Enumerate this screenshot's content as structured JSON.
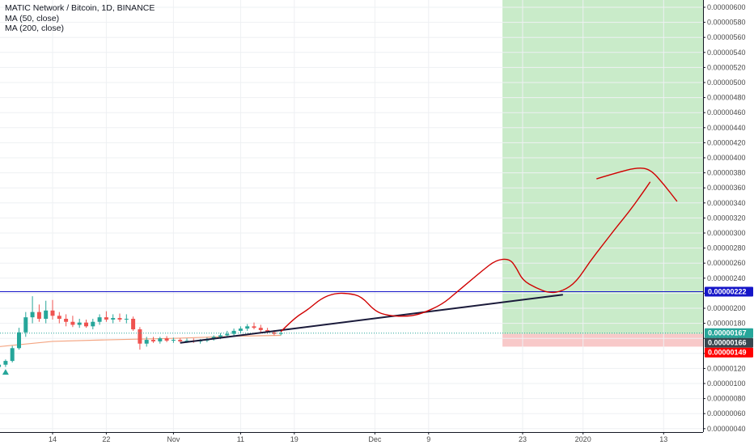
{
  "header": {
    "title": "MATIC Network / Bitcoin, 1D, BINANCE",
    "indicators": [
      "MA (50, close)",
      "MA (200, close)"
    ]
  },
  "colors": {
    "up": "#26a69a",
    "down": "#ef5350",
    "ma200": "#f4a582",
    "hline": "#1515c8",
    "trendline": "#1a1a3a",
    "drawing": "#d00000",
    "profit_zone": "#c9ebc9",
    "loss_zone": "#f8c9c9",
    "tag_hline": "#1515c8",
    "tag_current": "#26a69a",
    "tag_entry": "#37474f",
    "tag_stop": "#ff0000"
  },
  "chart_data": {
    "type": "candlestick",
    "title": "MATIC Network / Bitcoin, 1D, BINANCE",
    "y_axis": {
      "min": 4e-07,
      "max": 6.1e-07,
      "step": 2e-07,
      "ticks": [
        "0.00000600",
        "0.00000580",
        "0.00000560",
        "0.00000540",
        "0.00000520",
        "0.00000500",
        "0.00000480",
        "0.00000460",
        "0.00000440",
        "0.00000420",
        "0.00000400",
        "0.00000380",
        "0.00000360",
        "0.00000340",
        "0.00000320",
        "0.00000300",
        "0.00000280",
        "0.00000260",
        "0.00000240",
        "0.00000220",
        "0.00000200",
        "0.00000180",
        "0.00000160",
        "0.00000140",
        "0.00000120",
        "0.00000100",
        "0.00000080",
        "0.00000060",
        "0.00000040"
      ]
    },
    "x_axis": {
      "ticks": [
        {
          "label": "14",
          "date": "2019-10-14"
        },
        {
          "label": "22",
          "date": "2019-10-22"
        },
        {
          "label": "Nov",
          "date": "2019-11-01"
        },
        {
          "label": "11",
          "date": "2019-11-11"
        },
        {
          "label": "19",
          "date": "2019-11-19"
        },
        {
          "label": "Dec",
          "date": "2019-12-01"
        },
        {
          "label": "9",
          "date": "2019-12-09"
        },
        {
          "label": "23",
          "date": "2019-12-23"
        },
        {
          "label": "2020",
          "date": "2020-01-01"
        },
        {
          "label": "13",
          "date": "2020-01-13"
        }
      ]
    },
    "candles": [
      {
        "date": "2019-10-06",
        "o": 1.22,
        "h": 1.28,
        "l": 1.18,
        "c": 1.25
      },
      {
        "date": "2019-10-07",
        "o": 1.25,
        "h": 1.32,
        "l": 1.22,
        "c": 1.3
      },
      {
        "date": "2019-10-08",
        "o": 1.3,
        "h": 1.5,
        "l": 1.28,
        "c": 1.47
      },
      {
        "date": "2019-10-09",
        "o": 1.47,
        "h": 1.74,
        "l": 1.45,
        "c": 1.68
      },
      {
        "date": "2019-10-10",
        "o": 1.68,
        "h": 1.95,
        "l": 1.62,
        "c": 1.88
      },
      {
        "date": "2019-10-11",
        "o": 1.88,
        "h": 2.16,
        "l": 1.8,
        "c": 1.95
      },
      {
        "date": "2019-10-12",
        "o": 1.95,
        "h": 2.05,
        "l": 1.82,
        "c": 1.86
      },
      {
        "date": "2019-10-13",
        "o": 1.86,
        "h": 2.1,
        "l": 1.8,
        "c": 1.97
      },
      {
        "date": "2019-10-14",
        "o": 1.97,
        "h": 2.11,
        "l": 1.85,
        "c": 1.9
      },
      {
        "date": "2019-10-15",
        "o": 1.9,
        "h": 1.95,
        "l": 1.8,
        "c": 1.86
      },
      {
        "date": "2019-10-16",
        "o": 1.86,
        "h": 1.92,
        "l": 1.76,
        "c": 1.82
      },
      {
        "date": "2019-10-17",
        "o": 1.82,
        "h": 1.9,
        "l": 1.75,
        "c": 1.78
      },
      {
        "date": "2019-10-18",
        "o": 1.78,
        "h": 1.86,
        "l": 1.74,
        "c": 1.81
      },
      {
        "date": "2019-10-19",
        "o": 1.81,
        "h": 1.85,
        "l": 1.74,
        "c": 1.76
      },
      {
        "date": "2019-10-20",
        "o": 1.76,
        "h": 1.86,
        "l": 1.72,
        "c": 1.82
      },
      {
        "date": "2019-10-21",
        "o": 1.82,
        "h": 1.92,
        "l": 1.78,
        "c": 1.88
      },
      {
        "date": "2019-10-22",
        "o": 1.88,
        "h": 1.96,
        "l": 1.82,
        "c": 1.85
      },
      {
        "date": "2019-10-23",
        "o": 1.85,
        "h": 1.92,
        "l": 1.8,
        "c": 1.87
      },
      {
        "date": "2019-10-24",
        "o": 1.87,
        "h": 1.93,
        "l": 1.82,
        "c": 1.85
      },
      {
        "date": "2019-10-25",
        "o": 1.85,
        "h": 1.92,
        "l": 1.8,
        "c": 1.86
      },
      {
        "date": "2019-10-26",
        "o": 1.86,
        "h": 1.89,
        "l": 1.7,
        "c": 1.72
      },
      {
        "date": "2019-10-27",
        "o": 1.72,
        "h": 1.75,
        "l": 1.45,
        "c": 1.53
      },
      {
        "date": "2019-10-28",
        "o": 1.53,
        "h": 1.62,
        "l": 1.49,
        "c": 1.58
      },
      {
        "date": "2019-10-29",
        "o": 1.58,
        "h": 1.62,
        "l": 1.54,
        "c": 1.56
      },
      {
        "date": "2019-10-30",
        "o": 1.56,
        "h": 1.62,
        "l": 1.53,
        "c": 1.6
      },
      {
        "date": "2019-10-31",
        "o": 1.6,
        "h": 1.63,
        "l": 1.55,
        "c": 1.57
      },
      {
        "date": "2019-11-01",
        "o": 1.57,
        "h": 1.61,
        "l": 1.54,
        "c": 1.58
      },
      {
        "date": "2019-11-02",
        "o": 1.58,
        "h": 1.6,
        "l": 1.55,
        "c": 1.56
      },
      {
        "date": "2019-11-03",
        "o": 1.56,
        "h": 1.6,
        "l": 1.54,
        "c": 1.57
      },
      {
        "date": "2019-11-04",
        "o": 1.57,
        "h": 1.6,
        "l": 1.54,
        "c": 1.56
      },
      {
        "date": "2019-11-05",
        "o": 1.56,
        "h": 1.59,
        "l": 1.53,
        "c": 1.57
      },
      {
        "date": "2019-11-06",
        "o": 1.57,
        "h": 1.61,
        "l": 1.55,
        "c": 1.59
      },
      {
        "date": "2019-11-07",
        "o": 1.59,
        "h": 1.64,
        "l": 1.57,
        "c": 1.62
      },
      {
        "date": "2019-11-08",
        "o": 1.62,
        "h": 1.67,
        "l": 1.59,
        "c": 1.64
      },
      {
        "date": "2019-11-09",
        "o": 1.64,
        "h": 1.7,
        "l": 1.61,
        "c": 1.66
      },
      {
        "date": "2019-11-10",
        "o": 1.66,
        "h": 1.73,
        "l": 1.63,
        "c": 1.7
      },
      {
        "date": "2019-11-11",
        "o": 1.7,
        "h": 1.76,
        "l": 1.67,
        "c": 1.73
      },
      {
        "date": "2019-11-12",
        "o": 1.73,
        "h": 1.79,
        "l": 1.7,
        "c": 1.76
      },
      {
        "date": "2019-11-13",
        "o": 1.76,
        "h": 1.81,
        "l": 1.72,
        "c": 1.74
      },
      {
        "date": "2019-11-14",
        "o": 1.74,
        "h": 1.78,
        "l": 1.68,
        "c": 1.71
      },
      {
        "date": "2019-11-15",
        "o": 1.71,
        "h": 1.74,
        "l": 1.66,
        "c": 1.68
      },
      {
        "date": "2019-11-16",
        "o": 1.68,
        "h": 1.71,
        "l": 1.64,
        "c": 1.66
      },
      {
        "date": "2019-11-17",
        "o": 1.66,
        "h": 1.7,
        "l": 1.64,
        "c": 1.67
      }
    ],
    "ma200": [
      {
        "date": "2019-10-06",
        "v": 1.49
      },
      {
        "date": "2019-10-14",
        "v": 1.56
      },
      {
        "date": "2019-10-22",
        "v": 1.58
      },
      {
        "date": "2019-11-01",
        "v": 1.6
      },
      {
        "date": "2019-11-11",
        "v": 1.63
      },
      {
        "date": "2019-11-17",
        "v": 1.64
      }
    ],
    "horizontal_line": {
      "value": 2.22,
      "label": "0.00000222"
    },
    "trendline": {
      "from": {
        "date": "2019-11-02",
        "v": 1.54
      },
      "to": {
        "date": "2019-12-29",
        "v": 2.18
      }
    },
    "position": {
      "start_date": "2019-12-20",
      "entry": 1.66,
      "target": 6.1,
      "stop": 1.49
    },
    "price_tags": [
      {
        "value": 2.22,
        "label": "0.00000222",
        "kind": "hline"
      },
      {
        "value": 1.67,
        "label": "0.00000167",
        "kind": "current"
      },
      {
        "value": 1.66,
        "label": "0.00000166",
        "kind": "entry"
      },
      {
        "value": 1.49,
        "label": "0.00000149",
        "kind": "stop"
      }
    ],
    "drawing_path": [
      {
        "date": "2019-11-17",
        "v": 1.69
      },
      {
        "date": "2019-11-19",
        "v": 1.87
      },
      {
        "date": "2019-11-21",
        "v": 1.98
      },
      {
        "date": "2019-11-23",
        "v": 2.13
      },
      {
        "date": "2019-11-25",
        "v": 2.2
      },
      {
        "date": "2019-11-27",
        "v": 2.2
      },
      {
        "date": "2019-11-29",
        "v": 2.16
      },
      {
        "date": "2019-12-01",
        "v": 1.96
      },
      {
        "date": "2019-12-03",
        "v": 1.9
      },
      {
        "date": "2019-12-06",
        "v": 1.89
      },
      {
        "date": "2019-12-08",
        "v": 1.93
      },
      {
        "date": "2019-12-11",
        "v": 2.05
      },
      {
        "date": "2019-12-13",
        "v": 2.2
      },
      {
        "date": "2019-12-15",
        "v": 2.35
      },
      {
        "date": "2019-12-17",
        "v": 2.5
      },
      {
        "date": "2019-12-19",
        "v": 2.64
      },
      {
        "date": "2019-12-21",
        "v": 2.66
      },
      {
        "date": "2019-12-22",
        "v": 2.55
      },
      {
        "date": "2019-12-23",
        "v": 2.37
      },
      {
        "date": "2019-12-25",
        "v": 2.27
      },
      {
        "date": "2019-12-27",
        "v": 2.2
      },
      {
        "date": "2019-12-29",
        "v": 2.23
      },
      {
        "date": "2019-12-31",
        "v": 2.35
      },
      {
        "date": "2020-01-02",
        "v": 2.62
      },
      {
        "date": "2020-01-04",
        "v": 2.85
      },
      {
        "date": "2020-01-06",
        "v": 3.08
      },
      {
        "date": "2020-01-08",
        "v": 3.3
      },
      {
        "date": "2020-01-10",
        "v": 3.55
      },
      {
        "date": "2020-01-11",
        "v": 3.68
      }
    ],
    "drawing_arc": [
      {
        "date": "2020-01-03",
        "v": 3.72
      },
      {
        "date": "2020-01-06",
        "v": 3.8
      },
      {
        "date": "2020-01-09",
        "v": 3.87
      },
      {
        "date": "2020-01-11",
        "v": 3.85
      },
      {
        "date": "2020-01-13",
        "v": 3.65
      },
      {
        "date": "2020-01-15",
        "v": 3.42
      }
    ],
    "signal_marker": {
      "date": "2019-10-07",
      "v": 1.16
    }
  }
}
